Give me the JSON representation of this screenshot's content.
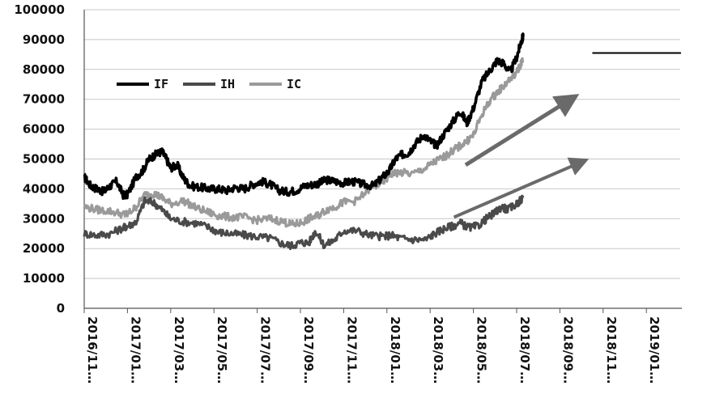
{
  "chart_data": {
    "type": "line",
    "title": "",
    "xlabel": "",
    "ylabel": "",
    "ylim": [
      0,
      100000
    ],
    "y_ticks": [
      "0",
      "10000",
      "20000",
      "30000",
      "40000",
      "50000",
      "60000",
      "70000",
      "80000",
      "90000",
      "100000"
    ],
    "x_ticks": [
      "2016/11…",
      "2017/01…",
      "2017/03…",
      "2017/05…",
      "2017/07…",
      "2017/09…",
      "2017/11…",
      "2018/01…",
      "2018/03…",
      "2018/05…",
      "2018/07…",
      "2018/09…",
      "2018/11…",
      "2019/01…"
    ],
    "grid": true,
    "legend": {
      "placement": "top-left"
    },
    "series": [
      {
        "name": "IF",
        "color": "#000000",
        "points": [
          [
            0,
            44000
          ],
          [
            0.15,
            41000
          ],
          [
            0.3,
            40000
          ],
          [
            0.45,
            39000
          ],
          [
            0.6,
            41000
          ],
          [
            0.75,
            42500
          ],
          [
            0.9,
            38000
          ],
          [
            1.0,
            38000
          ],
          [
            1.2,
            44000
          ],
          [
            1.35,
            46000
          ],
          [
            1.5,
            50000
          ],
          [
            1.65,
            51500
          ],
          [
            1.8,
            52500
          ],
          [
            1.9,
            50000
          ],
          [
            2.0,
            47000
          ],
          [
            2.15,
            48000
          ],
          [
            2.3,
            43500
          ],
          [
            2.45,
            41000
          ],
          [
            2.7,
            40500
          ],
          [
            2.9,
            40000
          ],
          [
            3.1,
            40000
          ],
          [
            3.3,
            39500
          ],
          [
            3.5,
            40500
          ],
          [
            3.7,
            40000
          ],
          [
            3.9,
            41500
          ],
          [
            4.1,
            42500
          ],
          [
            4.3,
            41500
          ],
          [
            4.5,
            39500
          ],
          [
            4.7,
            39000
          ],
          [
            4.9,
            39500
          ],
          [
            5.1,
            41000
          ],
          [
            5.3,
            41500
          ],
          [
            5.45,
            42000
          ],
          [
            5.6,
            43000
          ],
          [
            5.8,
            42500
          ],
          [
            6.0,
            42000
          ],
          [
            6.2,
            42500
          ],
          [
            6.45,
            41500
          ],
          [
            6.7,
            41000
          ],
          [
            6.9,
            44000
          ],
          [
            7.05,
            46000
          ],
          [
            7.2,
            50000
          ],
          [
            7.35,
            51500
          ],
          [
            7.5,
            52000
          ],
          [
            7.65,
            55000
          ],
          [
            7.85,
            58000
          ],
          [
            8.0,
            56000
          ],
          [
            8.15,
            54500
          ],
          [
            8.35,
            59000
          ],
          [
            8.55,
            63000
          ],
          [
            8.7,
            66000
          ],
          [
            8.85,
            62000
          ],
          [
            9.0,
            67000
          ],
          [
            9.2,
            76000
          ],
          [
            9.4,
            80000
          ],
          [
            9.55,
            83000
          ],
          [
            9.7,
            82000
          ],
          [
            9.85,
            79000
          ],
          [
            10.0,
            84000
          ],
          [
            10.1,
            89000
          ],
          [
            10.15,
            91000
          ]
        ]
      },
      {
        "name": "IH",
        "color": "#4a4a4a",
        "points": [
          [
            0,
            25000
          ],
          [
            0.3,
            24500
          ],
          [
            0.6,
            25000
          ],
          [
            0.9,
            27000
          ],
          [
            1.0,
            27500
          ],
          [
            1.2,
            29000
          ],
          [
            1.4,
            36000
          ],
          [
            1.6,
            35500
          ],
          [
            1.8,
            33000
          ],
          [
            2.0,
            30000
          ],
          [
            2.3,
            29000
          ],
          [
            2.6,
            28500
          ],
          [
            2.9,
            27000
          ],
          [
            3.1,
            25500
          ],
          [
            3.4,
            25000
          ],
          [
            3.7,
            24500
          ],
          [
            4.0,
            24000
          ],
          [
            4.3,
            23500
          ],
          [
            4.6,
            21500
          ],
          [
            4.8,
            21000
          ],
          [
            5.0,
            22000
          ],
          [
            5.2,
            22000
          ],
          [
            5.35,
            26000
          ],
          [
            5.55,
            21000
          ],
          [
            5.8,
            23000
          ],
          [
            6.0,
            26000
          ],
          [
            6.3,
            26000
          ],
          [
            6.6,
            24500
          ],
          [
            6.9,
            24000
          ],
          [
            7.1,
            24500
          ],
          [
            7.3,
            23500
          ],
          [
            7.6,
            23000
          ],
          [
            7.9,
            23000
          ],
          [
            8.1,
            25000
          ],
          [
            8.3,
            26500
          ],
          [
            8.5,
            27500
          ],
          [
            8.7,
            28500
          ],
          [
            8.9,
            27000
          ],
          [
            9.1,
            27500
          ],
          [
            9.3,
            30000
          ],
          [
            9.5,
            32000
          ],
          [
            9.65,
            34000
          ],
          [
            9.8,
            33000
          ],
          [
            10.0,
            35000
          ],
          [
            10.15,
            37000
          ]
        ]
      },
      {
        "name": "IC",
        "color": "#9a9a9a",
        "points": [
          [
            0,
            34000
          ],
          [
            0.3,
            33000
          ],
          [
            0.6,
            32500
          ],
          [
            0.9,
            31500
          ],
          [
            1.0,
            31500
          ],
          [
            1.2,
            34000
          ],
          [
            1.4,
            38000
          ],
          [
            1.6,
            38500
          ],
          [
            1.8,
            37000
          ],
          [
            2.0,
            35000
          ],
          [
            2.3,
            36000
          ],
          [
            2.6,
            33500
          ],
          [
            2.9,
            32000
          ],
          [
            3.1,
            31000
          ],
          [
            3.4,
            30500
          ],
          [
            3.7,
            30500
          ],
          [
            4.0,
            29500
          ],
          [
            4.3,
            30000
          ],
          [
            4.6,
            29000
          ],
          [
            4.8,
            28000
          ],
          [
            5.0,
            28500
          ],
          [
            5.2,
            30000
          ],
          [
            5.4,
            31000
          ],
          [
            5.6,
            33000
          ],
          [
            5.8,
            34000
          ],
          [
            6.0,
            35500
          ],
          [
            6.3,
            36000
          ],
          [
            6.6,
            40000
          ],
          [
            6.9,
            42000
          ],
          [
            7.1,
            45000
          ],
          [
            7.3,
            45500
          ],
          [
            7.6,
            45000
          ],
          [
            7.9,
            47000
          ],
          [
            8.1,
            49000
          ],
          [
            8.3,
            50500
          ],
          [
            8.5,
            52500
          ],
          [
            8.65,
            54000
          ],
          [
            8.85,
            56000
          ],
          [
            9.0,
            58000
          ],
          [
            9.2,
            65000
          ],
          [
            9.4,
            70000
          ],
          [
            9.6,
            73000
          ],
          [
            9.8,
            76000
          ],
          [
            10.0,
            79000
          ],
          [
            10.1,
            82000
          ],
          [
            10.15,
            83000
          ]
        ]
      }
    ],
    "annotations": [
      {
        "type": "arrow",
        "color": "#6a6a6a",
        "from": [
          8.82,
          48000
        ],
        "to": [
          11.25,
          70000
        ]
      },
      {
        "type": "arrow",
        "color": "#6a6a6a",
        "from": [
          8.55,
          30500
        ],
        "to": [
          11.5,
          49000
        ]
      },
      {
        "type": "hline",
        "color": "#000000",
        "y": 85500,
        "x_from": 11.75,
        "x_to": 13.8
      }
    ]
  }
}
